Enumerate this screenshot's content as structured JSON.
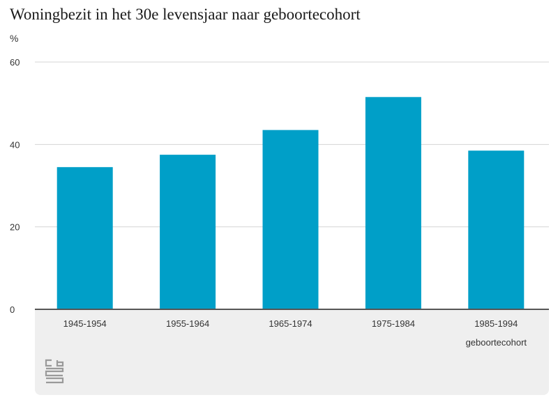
{
  "chart_data": {
    "type": "bar",
    "title": "Woningbezit in het 30e levensjaar naar geboortecohort",
    "ylabel": "%",
    "xlabel": "geboortecohort",
    "categories": [
      "1945-1954",
      "1955-1964",
      "1965-1974",
      "1975-1984",
      "1985-1994"
    ],
    "values": [
      34.5,
      37.5,
      43.5,
      51.5,
      38.5
    ],
    "ylim": [
      0,
      60
    ],
    "yticks": [
      0,
      20,
      40,
      60
    ],
    "grid": true,
    "bar_color": "#009fc8"
  },
  "logo": {
    "name": "cbs-logo",
    "color": "#9a9a9a"
  }
}
